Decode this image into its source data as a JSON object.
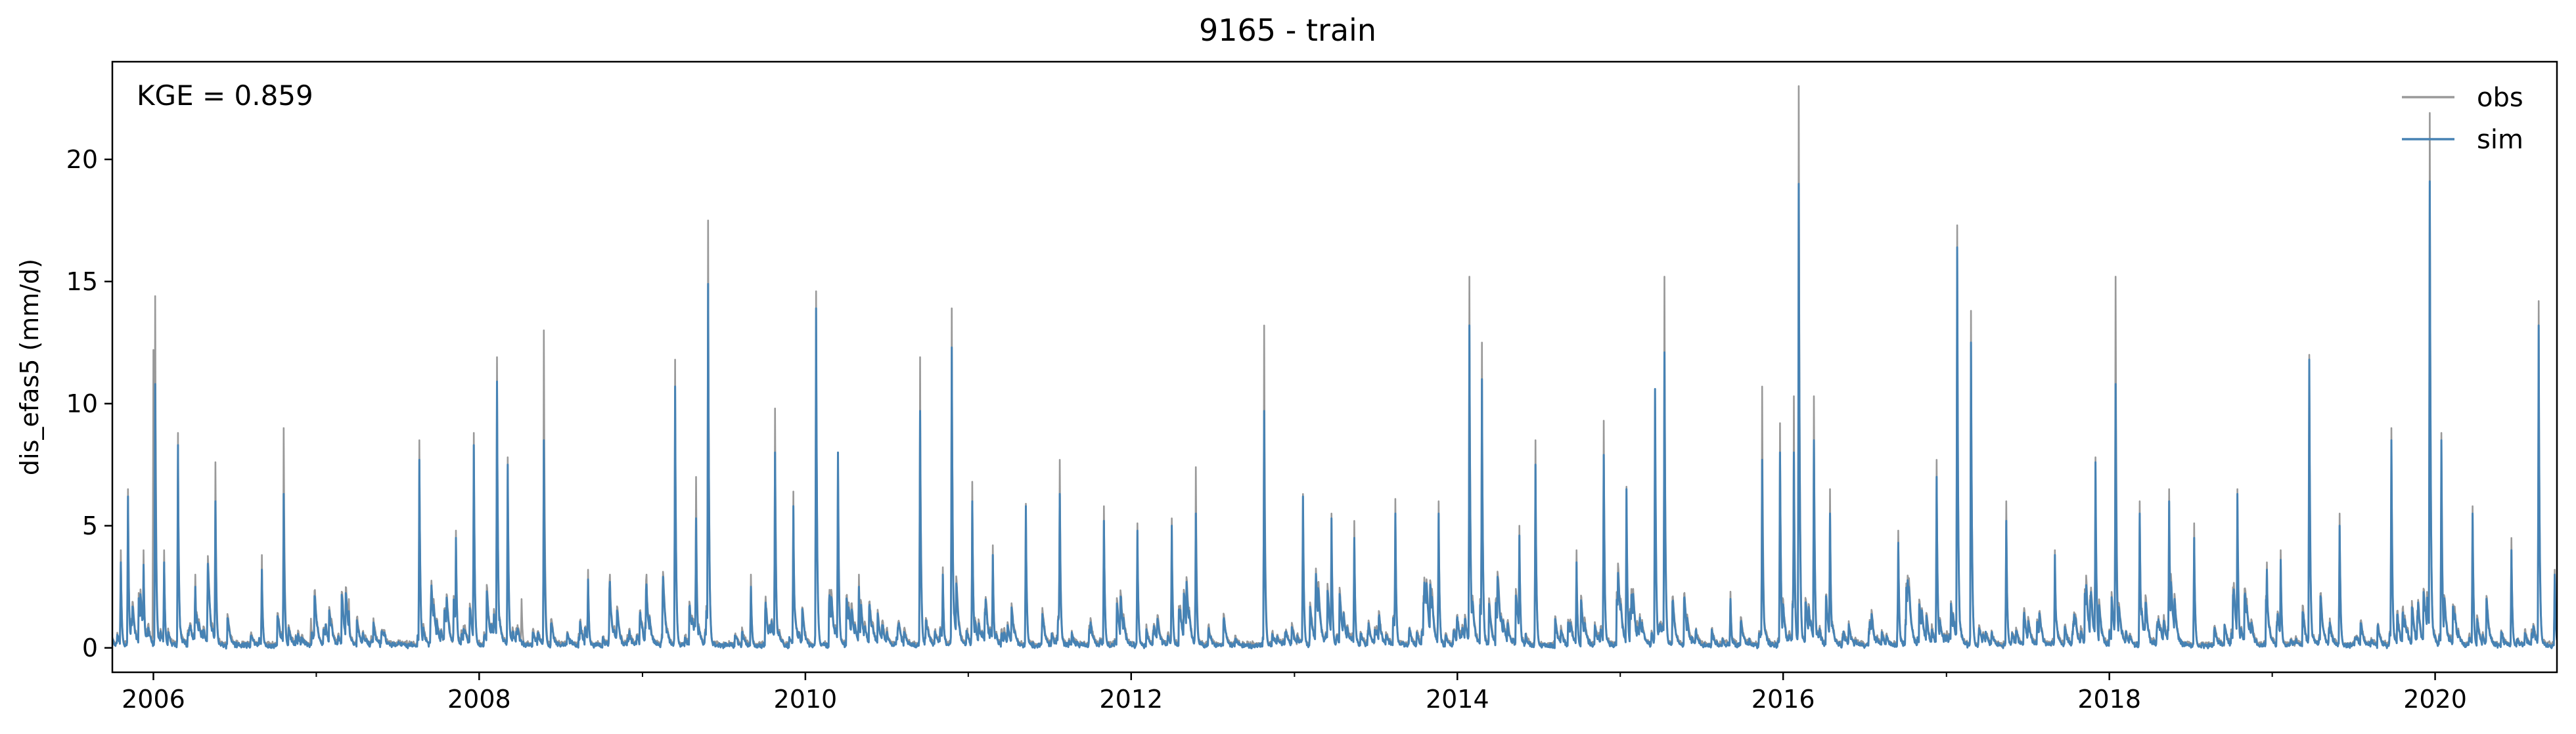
{
  "chart_data": {
    "type": "line",
    "title": "9165 - train",
    "ylabel": "dis_efas5 (mm/d)",
    "xlabel": "",
    "annotation": "KGE = 0.859",
    "x_range": [
      "2005-10-01",
      "2020-09-30"
    ],
    "ylim": [
      -1.0,
      24.0
    ],
    "x_ticks": [
      {
        "date": "2006-01-01",
        "label": "2006"
      },
      {
        "date": "2008-01-01",
        "label": "2008"
      },
      {
        "date": "2010-01-01",
        "label": "2010"
      },
      {
        "date": "2012-01-01",
        "label": "2012"
      },
      {
        "date": "2014-01-01",
        "label": "2014"
      },
      {
        "date": "2016-01-01",
        "label": "2016"
      },
      {
        "date": "2018-01-01",
        "label": "2018"
      },
      {
        "date": "2020-01-01",
        "label": "2020"
      }
    ],
    "y_ticks": [
      0,
      5,
      10,
      15,
      20
    ],
    "grid": false,
    "legend_position": "top-right",
    "series": [
      {
        "name": "obs",
        "color": "#999999",
        "peaks": [
          [
            "2005-10-20",
            4.0
          ],
          [
            "2005-11-05",
            6.5
          ],
          [
            "2005-12-10",
            4.0
          ],
          [
            "2006-01-01",
            12.2
          ],
          [
            "2006-01-05",
            14.4
          ],
          [
            "2006-01-25",
            4.0
          ],
          [
            "2006-02-25",
            8.8
          ],
          [
            "2006-04-05",
            3.0
          ],
          [
            "2006-05-20",
            7.6
          ],
          [
            "2006-09-01",
            3.8
          ],
          [
            "2006-10-20",
            9.0
          ],
          [
            "2006-12-20",
            1.2
          ],
          [
            "2007-03-15",
            2.0
          ],
          [
            "2007-08-20",
            8.5
          ],
          [
            "2007-11-10",
            4.8
          ],
          [
            "2007-12-20",
            8.8
          ],
          [
            "2008-02-10",
            11.9
          ],
          [
            "2008-03-05",
            7.8
          ],
          [
            "2008-04-05",
            2.0
          ],
          [
            "2008-05-25",
            13.0
          ],
          [
            "2008-09-01",
            3.2
          ],
          [
            "2008-10-20",
            3.0
          ],
          [
            "2009-01-10",
            3.0
          ],
          [
            "2009-03-15",
            11.8
          ],
          [
            "2009-05-01",
            7.0
          ],
          [
            "2009-05-28",
            17.5
          ],
          [
            "2009-09-01",
            3.0
          ],
          [
            "2009-10-25",
            9.8
          ],
          [
            "2009-12-05",
            6.4
          ],
          [
            "2010-01-25",
            14.6
          ],
          [
            "2010-03-15",
            8.0
          ],
          [
            "2010-05-01",
            3.0
          ],
          [
            "2010-09-15",
            11.9
          ],
          [
            "2010-11-05",
            3.3
          ],
          [
            "2010-11-25",
            13.9
          ],
          [
            "2011-01-10",
            6.8
          ],
          [
            "2011-02-25",
            4.2
          ],
          [
            "2011-05-10",
            5.9
          ],
          [
            "2011-07-25",
            7.7
          ],
          [
            "2011-11-01",
            5.8
          ],
          [
            "2012-01-15",
            5.1
          ],
          [
            "2012-04-01",
            5.3
          ],
          [
            "2012-05-25",
            7.4
          ],
          [
            "2012-10-25",
            13.2
          ],
          [
            "2013-01-20",
            6.3
          ],
          [
            "2013-03-25",
            5.5
          ],
          [
            "2013-05-15",
            5.2
          ],
          [
            "2013-08-15",
            6.1
          ],
          [
            "2013-11-20",
            6.0
          ],
          [
            "2014-01-28",
            15.2
          ],
          [
            "2014-02-25",
            12.5
          ],
          [
            "2014-05-20",
            5.0
          ],
          [
            "2014-06-25",
            8.5
          ],
          [
            "2014-09-25",
            4.0
          ],
          [
            "2014-11-25",
            9.3
          ],
          [
            "2015-01-15",
            6.6
          ],
          [
            "2015-03-20",
            10.5
          ],
          [
            "2015-04-10",
            15.2
          ],
          [
            "2015-09-05",
            2.3
          ],
          [
            "2015-11-15",
            10.7
          ],
          [
            "2015-12-25",
            9.2
          ],
          [
            "2016-01-25",
            10.3
          ],
          [
            "2016-02-05",
            23.0
          ],
          [
            "2016-03-10",
            10.3
          ],
          [
            "2016-04-15",
            6.5
          ],
          [
            "2016-09-15",
            4.8
          ],
          [
            "2016-12-10",
            7.7
          ],
          [
            "2017-01-25",
            17.3
          ],
          [
            "2017-02-25",
            13.8
          ],
          [
            "2017-05-15",
            6.0
          ],
          [
            "2017-09-01",
            4.0
          ],
          [
            "2017-12-01",
            7.8
          ],
          [
            "2018-01-15",
            15.2
          ],
          [
            "2018-03-10",
            6.0
          ],
          [
            "2018-05-15",
            6.5
          ],
          [
            "2018-07-10",
            5.1
          ],
          [
            "2018-10-15",
            6.5
          ],
          [
            "2018-12-20",
            3.5
          ],
          [
            "2019-01-20",
            4.0
          ],
          [
            "2019-03-25",
            12.0
          ],
          [
            "2019-06-01",
            5.5
          ],
          [
            "2019-09-25",
            9.0
          ],
          [
            "2019-12-20",
            21.9
          ],
          [
            "2020-01-15",
            8.8
          ],
          [
            "2020-03-25",
            5.8
          ],
          [
            "2020-06-20",
            4.5
          ],
          [
            "2020-08-20",
            14.2
          ],
          [
            "2020-09-25",
            3.2
          ]
        ]
      },
      {
        "name": "sim",
        "color": "#4682B4",
        "peaks": [
          [
            "2005-10-20",
            3.5
          ],
          [
            "2005-11-05",
            6.2
          ],
          [
            "2005-12-10",
            3.4
          ],
          [
            "2006-01-05",
            10.8
          ],
          [
            "2006-01-25",
            3.5
          ],
          [
            "2006-02-25",
            8.3
          ],
          [
            "2006-04-05",
            2.5
          ],
          [
            "2006-05-20",
            6.0
          ],
          [
            "2006-09-01",
            3.2
          ],
          [
            "2006-10-20",
            6.3
          ],
          [
            "2007-03-15",
            1.5
          ],
          [
            "2007-08-20",
            7.7
          ],
          [
            "2007-11-10",
            4.5
          ],
          [
            "2007-12-20",
            8.3
          ],
          [
            "2008-02-10",
            10.9
          ],
          [
            "2008-03-05",
            7.5
          ],
          [
            "2008-05-25",
            8.5
          ],
          [
            "2008-09-01",
            2.8
          ],
          [
            "2008-10-20",
            2.7
          ],
          [
            "2009-01-10",
            2.6
          ],
          [
            "2009-03-15",
            10.7
          ],
          [
            "2009-05-01",
            5.3
          ],
          [
            "2009-05-28",
            14.9
          ],
          [
            "2009-09-01",
            2.5
          ],
          [
            "2009-10-25",
            8.0
          ],
          [
            "2009-12-05",
            5.8
          ],
          [
            "2010-01-25",
            13.9
          ],
          [
            "2010-03-15",
            8.0
          ],
          [
            "2010-05-01",
            2.5
          ],
          [
            "2010-09-15",
            9.7
          ],
          [
            "2010-11-05",
            3.0
          ],
          [
            "2010-11-25",
            12.3
          ],
          [
            "2011-01-10",
            6.0
          ],
          [
            "2011-02-25",
            3.8
          ],
          [
            "2011-05-10",
            5.8
          ],
          [
            "2011-07-25",
            6.3
          ],
          [
            "2011-11-01",
            5.2
          ],
          [
            "2012-01-15",
            4.8
          ],
          [
            "2012-04-01",
            5.0
          ],
          [
            "2012-05-25",
            5.5
          ],
          [
            "2012-10-25",
            9.7
          ],
          [
            "2013-01-20",
            6.2
          ],
          [
            "2013-03-25",
            5.3
          ],
          [
            "2013-05-15",
            4.5
          ],
          [
            "2013-08-15",
            5.5
          ],
          [
            "2013-11-20",
            5.5
          ],
          [
            "2014-01-28",
            13.2
          ],
          [
            "2014-02-25",
            11.0
          ],
          [
            "2014-05-20",
            4.6
          ],
          [
            "2014-06-25",
            7.5
          ],
          [
            "2014-09-25",
            3.5
          ],
          [
            "2014-11-25",
            7.9
          ],
          [
            "2015-01-15",
            6.5
          ],
          [
            "2015-03-20",
            10.6
          ],
          [
            "2015-04-10",
            12.1
          ],
          [
            "2015-09-05",
            2.0
          ],
          [
            "2015-11-15",
            7.7
          ],
          [
            "2015-12-25",
            8.0
          ],
          [
            "2016-01-25",
            8.0
          ],
          [
            "2016-02-05",
            19.0
          ],
          [
            "2016-03-10",
            8.5
          ],
          [
            "2016-04-15",
            5.5
          ],
          [
            "2016-09-15",
            4.3
          ],
          [
            "2016-12-10",
            7.0
          ],
          [
            "2017-01-25",
            16.4
          ],
          [
            "2017-02-25",
            12.5
          ],
          [
            "2017-05-15",
            5.2
          ],
          [
            "2017-09-01",
            3.8
          ],
          [
            "2017-12-01",
            7.6
          ],
          [
            "2018-01-15",
            10.8
          ],
          [
            "2018-03-10",
            5.5
          ],
          [
            "2018-05-15",
            6.0
          ],
          [
            "2018-07-10",
            4.5
          ],
          [
            "2018-10-15",
            6.3
          ],
          [
            "2018-12-20",
            3.2
          ],
          [
            "2019-01-20",
            3.6
          ],
          [
            "2019-03-25",
            11.8
          ],
          [
            "2019-06-01",
            5.0
          ],
          [
            "2019-09-25",
            8.5
          ],
          [
            "2019-12-20",
            19.1
          ],
          [
            "2020-01-15",
            8.5
          ],
          [
            "2020-03-25",
            5.5
          ],
          [
            "2020-06-20",
            4.0
          ],
          [
            "2020-08-20",
            13.2
          ],
          [
            "2020-09-25",
            3.0
          ]
        ]
      }
    ]
  }
}
